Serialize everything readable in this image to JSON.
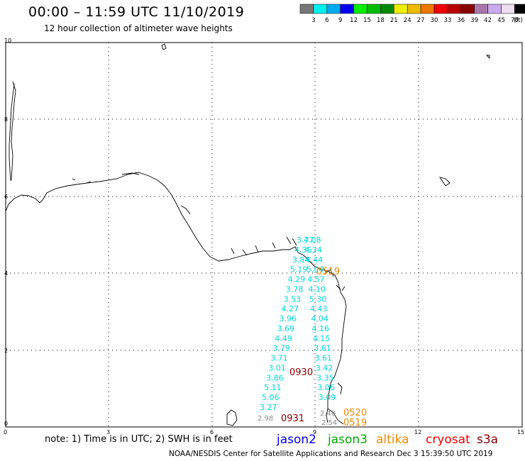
{
  "header": {
    "title": "00:00 – 11:59 UTC 11/10/2019",
    "subtitle": "12 hour collection of altimeter wave heights"
  },
  "color_scale": {
    "colors": [
      "#777777",
      "#00eeee",
      "#00aaee",
      "#0000ee",
      "#00ee00",
      "#00bb00",
      "#008800",
      "#eeee00",
      "#eebb00",
      "#ee7700",
      "#ee0000",
      "#bb0000",
      "#880000",
      "#aa77aa",
      "#ccaaee",
      "#eeddee",
      "#000000"
    ],
    "labels": [
      "3",
      "6",
      "9",
      "12",
      "15",
      "18",
      "21",
      "24",
      "27",
      "30",
      "33",
      "36",
      "39",
      "42",
      "45",
      "70"
    ],
    "unit": "(ft)"
  },
  "axes": {
    "x_ticks": [
      "0",
      "3",
      "6",
      "9",
      "12",
      "15"
    ],
    "y_ticks": [
      "10",
      "8",
      "6",
      "4",
      "2",
      "0"
    ]
  },
  "track_measurements": {
    "color": "#00d8d8",
    "values": [
      "3.77",
      "4.08",
      "4.36",
      "4.34",
      "3.84",
      "4.44",
      "5.19",
      "5.04",
      "4.29",
      "4.57",
      "3.78",
      "4.10",
      "3.53",
      "5.30",
      "4.27",
      "4.43",
      "3.96",
      "4.04",
      "3.69",
      "4.16",
      "4.49",
      "4.15",
      "3.79",
      "3.61",
      "3.71",
      "3.61",
      "3.01",
      "3.42",
      "3.86",
      "3.35",
      "5.11",
      "3.06",
      "5.06",
      "3.09",
      "3.27"
    ],
    "gray_values": [
      "2.98",
      "2.40",
      "2.54"
    ],
    "gray_color": "#888888"
  },
  "pass_times": {
    "jason2_color": "#0000cc",
    "cryosat_color": "#880000",
    "altika_color": "#ee8800",
    "labels": [
      "0930",
      "0931",
      "0520",
      "0519",
      "0519"
    ]
  },
  "footer": {
    "note": "note:  1) Time is in UTC; 2) SWH is in feet",
    "legend": [
      {
        "name": "jason2",
        "color": "#0000ee"
      },
      {
        "name": "jason3",
        "color": "#00aa00"
      },
      {
        "name": "altika",
        "color": "#ee8800"
      },
      {
        "name": "cryosat",
        "color": "#ee0000"
      },
      {
        "name": "s3a",
        "color": "#880000"
      }
    ],
    "credit": "NOAA/NESDIS Center for Satellite Applications and Research     Dec  3 15:39:50 UTC 2019"
  }
}
